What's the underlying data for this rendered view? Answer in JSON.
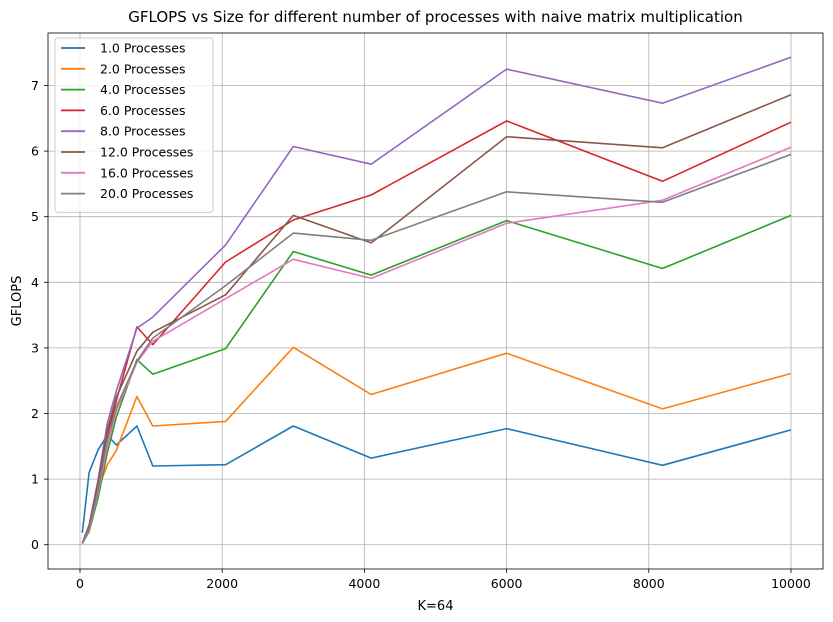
{
  "chart_data": {
    "type": "line",
    "title": "GFLOPS vs Size for different number of processes with naive matrix multiplication",
    "xlabel": "K=64",
    "ylabel": "GFLOPS",
    "xlim": [
      -450,
      10450
    ],
    "ylim": [
      -0.37,
      7.8
    ],
    "xticks": [
      0,
      2000,
      4000,
      6000,
      8000,
      10000
    ],
    "yticks": [
      0,
      1,
      2,
      3,
      4,
      5,
      6,
      7
    ],
    "grid": true,
    "legend_position": "top-left",
    "series": [
      {
        "name": "1.0 Processes",
        "color": "#1f77b4",
        "x": [
          32,
          128,
          256,
          384,
          512,
          800,
          1024,
          2048,
          3000,
          4096,
          6000,
          8192,
          10000
        ],
        "y": [
          0.18,
          1.1,
          1.45,
          1.67,
          1.52,
          1.81,
          1.2,
          1.22,
          1.81,
          1.32,
          1.77,
          1.21,
          1.75
        ]
      },
      {
        "name": "2.0 Processes",
        "color": "#ff7f0e",
        "x": [
          32,
          128,
          256,
          384,
          512,
          800,
          1024,
          2048,
          3000,
          4096,
          6000,
          8192,
          10000
        ],
        "y": [
          0.02,
          0.3,
          0.85,
          1.22,
          1.44,
          2.26,
          1.81,
          1.88,
          3.01,
          2.29,
          2.92,
          2.07,
          2.61
        ]
      },
      {
        "name": "4.0 Processes",
        "color": "#2ca02c",
        "x": [
          32,
          128,
          256,
          384,
          512,
          800,
          1024,
          2048,
          3000,
          4096,
          6000,
          8192,
          10000
        ],
        "y": [
          0.02,
          0.2,
          0.72,
          1.4,
          1.95,
          2.82,
          2.6,
          2.99,
          4.47,
          4.11,
          4.94,
          4.21,
          5.02
        ]
      },
      {
        "name": "6.0 Processes",
        "color": "#d62728",
        "x": [
          32,
          128,
          256,
          384,
          512,
          800,
          1024,
          2048,
          3000,
          4096,
          6000,
          8192,
          10000
        ],
        "y": [
          0.02,
          0.25,
          0.9,
          1.65,
          2.2,
          3.32,
          3.05,
          4.31,
          4.95,
          5.33,
          6.46,
          5.54,
          6.44
        ]
      },
      {
        "name": "8.0 Processes",
        "color": "#9467bd",
        "x": [
          32,
          128,
          256,
          384,
          512,
          800,
          1024,
          2048,
          3000,
          4096,
          6000,
          8192,
          10000
        ],
        "y": [
          0.02,
          0.3,
          1.0,
          1.85,
          2.35,
          3.3,
          3.47,
          4.57,
          6.07,
          5.8,
          7.25,
          6.73,
          7.43
        ]
      },
      {
        "name": "12.0 Processes",
        "color": "#8c564b",
        "x": [
          32,
          128,
          256,
          384,
          512,
          800,
          1024,
          2048,
          3000,
          4096,
          6000,
          8192,
          10000
        ],
        "y": [
          0.02,
          0.28,
          0.95,
          1.75,
          2.25,
          2.95,
          3.24,
          3.81,
          5.02,
          4.6,
          6.22,
          6.05,
          6.86
        ]
      },
      {
        "name": "16.0 Processes",
        "color": "#e377c2",
        "x": [
          32,
          128,
          256,
          384,
          512,
          800,
          1024,
          2048,
          3000,
          4096,
          6000,
          8192,
          10000
        ],
        "y": [
          0.02,
          0.22,
          0.8,
          1.5,
          2.05,
          2.78,
          3.1,
          3.75,
          4.35,
          4.06,
          4.9,
          5.25,
          6.06
        ]
      },
      {
        "name": "20.0 Processes",
        "color": "#7f7f7f",
        "x": [
          32,
          128,
          256,
          384,
          512,
          800,
          1024,
          2048,
          3000,
          4096,
          6000,
          8192,
          10000
        ],
        "y": [
          0.02,
          0.24,
          0.85,
          1.6,
          2.1,
          2.8,
          3.15,
          3.95,
          4.75,
          4.64,
          5.38,
          5.22,
          5.95
        ]
      }
    ]
  }
}
